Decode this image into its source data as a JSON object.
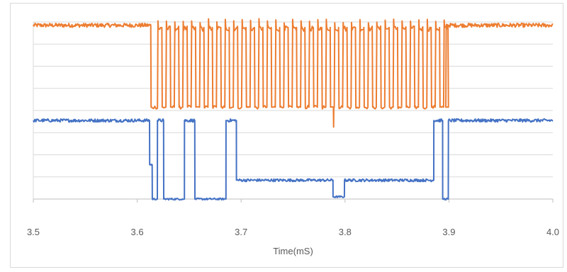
{
  "chart_data": {
    "type": "line",
    "title": "",
    "xlabel": "Time(mS)",
    "ylabel": "",
    "xlim": [
      3.5,
      4.0
    ],
    "ylim": [
      0,
      8
    ],
    "x_ticks": [
      "3.5",
      "3.6",
      "3.7",
      "3.8",
      "3.9",
      "4.0"
    ],
    "x_tick_values": [
      3.5,
      3.6,
      3.7,
      3.8,
      3.9,
      4.0
    ],
    "y_gridlines": [
      0,
      1,
      2,
      3,
      4,
      5,
      6,
      7,
      8
    ],
    "y_tick_labels_shown": false,
    "grid": true,
    "legend": "none",
    "series": [
      {
        "color": "#ed7d31",
        "description_points": "clock-like square wave",
        "idle_level": 7.85,
        "low_level": 4.15,
        "burst_start": 3.613,
        "burst_end": 3.897,
        "period": 0.0081,
        "high_segments_start_offset": 0.0065,
        "high_duty": 0.52,
        "glitch": {
          "x": 3.789,
          "y": 3.25
        }
      },
      {
        "color": "#4472c4",
        "idle_level": 3.55,
        "segments": [
          [
            3.5,
            3.55
          ],
          [
            3.612,
            1.55
          ],
          [
            3.6145,
            0.0
          ],
          [
            3.6195,
            3.55
          ],
          [
            3.6255,
            0.0
          ],
          [
            3.6455,
            3.55
          ],
          [
            3.6555,
            0.0
          ],
          [
            3.6855,
            3.55
          ],
          [
            3.6955,
            0.85
          ],
          [
            3.7885,
            0.1
          ],
          [
            3.7995,
            0.85
          ],
          [
            3.8855,
            3.55
          ],
          [
            3.894,
            0.0
          ],
          [
            3.8995,
            3.55
          ],
          [
            4.0,
            3.55
          ]
        ]
      }
    ]
  }
}
